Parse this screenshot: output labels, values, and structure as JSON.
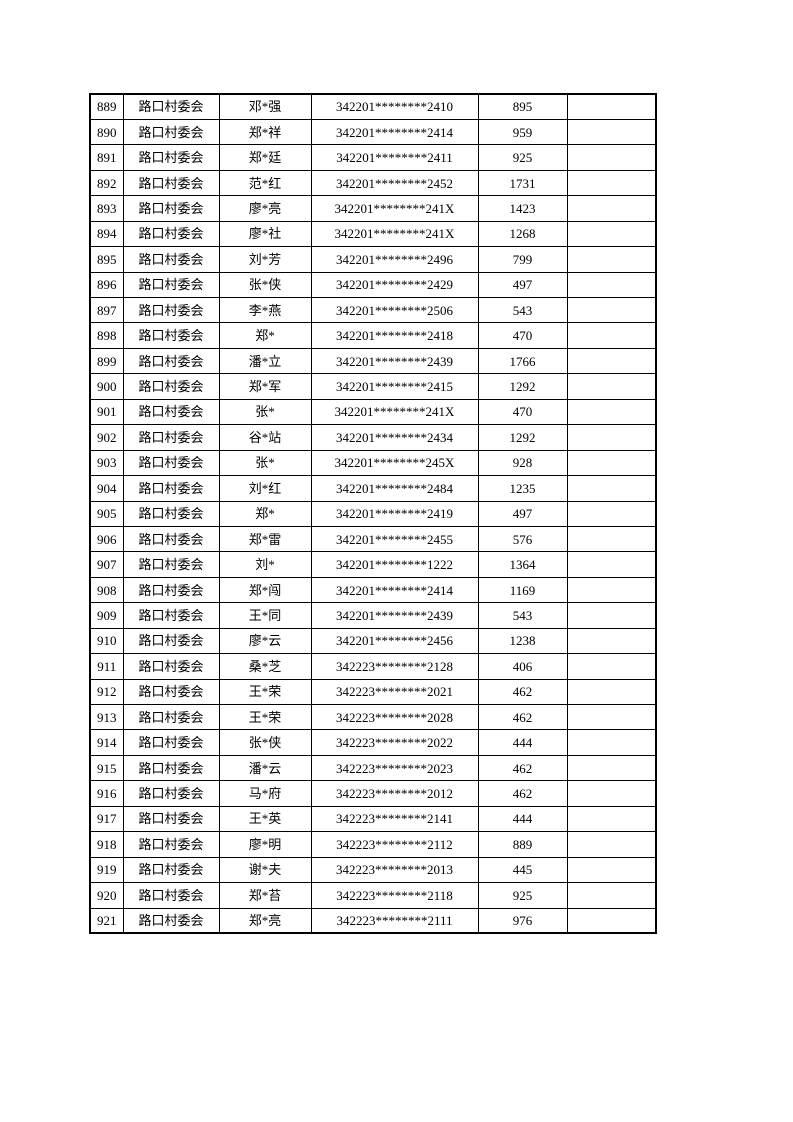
{
  "style": {
    "page_background": "#ffffff",
    "border_color": "#000000",
    "text_color": "#000000"
  },
  "document": {
    "committee": "路口村委会",
    "table": {
      "rows": [
        {
          "no": "889",
          "committee": "路口村委会",
          "name": "邓*强",
          "id_number": "342201********2410",
          "amount": "895",
          "note": ""
        },
        {
          "no": "890",
          "committee": "路口村委会",
          "name": "郑*祥",
          "id_number": "342201********2414",
          "amount": "959",
          "note": ""
        },
        {
          "no": "891",
          "committee": "路口村委会",
          "name": "郑*廷",
          "id_number": "342201********2411",
          "amount": "925",
          "note": ""
        },
        {
          "no": "892",
          "committee": "路口村委会",
          "name": "范*红",
          "id_number": "342201********2452",
          "amount": "1731",
          "note": ""
        },
        {
          "no": "893",
          "committee": "路口村委会",
          "name": "廖*亮",
          "id_number": "342201********241X",
          "amount": "1423",
          "note": ""
        },
        {
          "no": "894",
          "committee": "路口村委会",
          "name": "廖*社",
          "id_number": "342201********241X",
          "amount": "1268",
          "note": ""
        },
        {
          "no": "895",
          "committee": "路口村委会",
          "name": "刘*芳",
          "id_number": "342201********2496",
          "amount": "799",
          "note": ""
        },
        {
          "no": "896",
          "committee": "路口村委会",
          "name": "张*侠",
          "id_number": "342201********2429",
          "amount": "497",
          "note": ""
        },
        {
          "no": "897",
          "committee": "路口村委会",
          "name": "李*燕",
          "id_number": "342201********2506",
          "amount": "543",
          "note": ""
        },
        {
          "no": "898",
          "committee": "路口村委会",
          "name": "郑*",
          "id_number": "342201********2418",
          "amount": "470",
          "note": ""
        },
        {
          "no": "899",
          "committee": "路口村委会",
          "name": "潘*立",
          "id_number": "342201********2439",
          "amount": "1766",
          "note": ""
        },
        {
          "no": "900",
          "committee": "路口村委会",
          "name": "郑*军",
          "id_number": "342201********2415",
          "amount": "1292",
          "note": ""
        },
        {
          "no": "901",
          "committee": "路口村委会",
          "name": "张*",
          "id_number": "342201********241X",
          "amount": "470",
          "note": ""
        },
        {
          "no": "902",
          "committee": "路口村委会",
          "name": "谷*站",
          "id_number": "342201********2434",
          "amount": "1292",
          "note": ""
        },
        {
          "no": "903",
          "committee": "路口村委会",
          "name": "张*",
          "id_number": "342201********245X",
          "amount": "928",
          "note": ""
        },
        {
          "no": "904",
          "committee": "路口村委会",
          "name": "刘*红",
          "id_number": "342201********2484",
          "amount": "1235",
          "note": ""
        },
        {
          "no": "905",
          "committee": "路口村委会",
          "name": "郑*",
          "id_number": "342201********2419",
          "amount": "497",
          "note": ""
        },
        {
          "no": "906",
          "committee": "路口村委会",
          "name": "郑*雷",
          "id_number": "342201********2455",
          "amount": "576",
          "note": ""
        },
        {
          "no": "907",
          "committee": "路口村委会",
          "name": "刘*",
          "id_number": "342201********1222",
          "amount": "1364",
          "note": ""
        },
        {
          "no": "908",
          "committee": "路口村委会",
          "name": "郑*闯",
          "id_number": "342201********2414",
          "amount": "1169",
          "note": ""
        },
        {
          "no": "909",
          "committee": "路口村委会",
          "name": "王*同",
          "id_number": "342201********2439",
          "amount": "543",
          "note": ""
        },
        {
          "no": "910",
          "committee": "路口村委会",
          "name": "廖*云",
          "id_number": "342201********2456",
          "amount": "1238",
          "note": ""
        },
        {
          "no": "911",
          "committee": "路口村委会",
          "name": "桑*芝",
          "id_number": "342223********2128",
          "amount": "406",
          "note": ""
        },
        {
          "no": "912",
          "committee": "路口村委会",
          "name": "王*荣",
          "id_number": "342223********2021",
          "amount": "462",
          "note": ""
        },
        {
          "no": "913",
          "committee": "路口村委会",
          "name": "王*荣",
          "id_number": "342223********2028",
          "amount": "462",
          "note": ""
        },
        {
          "no": "914",
          "committee": "路口村委会",
          "name": "张*侠",
          "id_number": "342223********2022",
          "amount": "444",
          "note": ""
        },
        {
          "no": "915",
          "committee": "路口村委会",
          "name": "潘*云",
          "id_number": "342223********2023",
          "amount": "462",
          "note": ""
        },
        {
          "no": "916",
          "committee": "路口村委会",
          "name": "马*府",
          "id_number": "342223********2012",
          "amount": "462",
          "note": ""
        },
        {
          "no": "917",
          "committee": "路口村委会",
          "name": "王*英",
          "id_number": "342223********2141",
          "amount": "444",
          "note": ""
        },
        {
          "no": "918",
          "committee": "路口村委会",
          "name": "廖*明",
          "id_number": "342223********2112",
          "amount": "889",
          "note": ""
        },
        {
          "no": "919",
          "committee": "路口村委会",
          "name": "谢*夫",
          "id_number": "342223********2013",
          "amount": "445",
          "note": ""
        },
        {
          "no": "920",
          "committee": "路口村委会",
          "name": "郑*苔",
          "id_number": "342223********2118",
          "amount": "925",
          "note": ""
        },
        {
          "no": "921",
          "committee": "路口村委会",
          "name": "郑*亮",
          "id_number": "342223********2111",
          "amount": "976",
          "note": ""
        }
      ]
    }
  }
}
